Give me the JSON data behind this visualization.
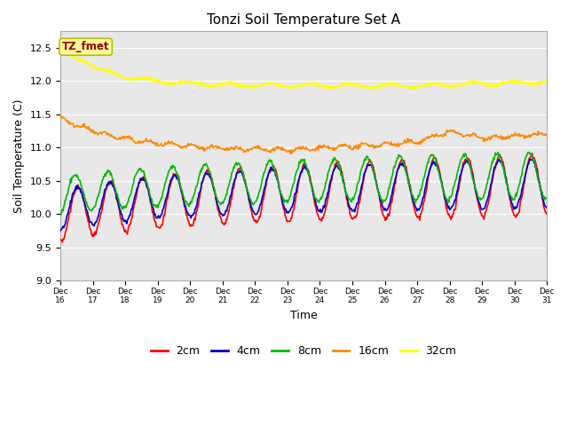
{
  "title": "Tonzi Soil Temperature Set A",
  "xlabel": "Time",
  "ylabel": "Soil Temperature (C)",
  "ylim": [
    9.0,
    12.75
  ],
  "yticks": [
    9.0,
    9.5,
    10.0,
    10.5,
    11.0,
    11.5,
    12.0,
    12.5
  ],
  "background_color": "#ffffff",
  "plot_bg_color": "#e8e8e8",
  "annotation_text": "TZ_fmet",
  "annotation_bg": "#ffff99",
  "annotation_border": "#bbbb00",
  "annotation_text_color": "#990000",
  "legend_entries": [
    "2cm",
    "4cm",
    "8cm",
    "16cm",
    "32cm"
  ],
  "line_colors": [
    "#ff0000",
    "#0000cc",
    "#00bb00",
    "#ff8800",
    "#ffff00"
  ],
  "line_widths": [
    1.2,
    1.2,
    1.2,
    1.2,
    1.5
  ],
  "n_points": 720,
  "x_start": 16,
  "x_end": 31,
  "xtick_positions": [
    16,
    17,
    18,
    19,
    20,
    21,
    22,
    23,
    24,
    25,
    26,
    27,
    28,
    29,
    30,
    31
  ],
  "xtick_labels": [
    "Dec 16",
    "Dec 17",
    "Dec 18",
    "Dec 19",
    "Dec 20",
    "Dec 21",
    "Dec 22",
    "Dec 23",
    "Dec 24",
    "Dec 25",
    "Dec 26",
    "Dec 27",
    "Dec 28",
    "Dec 29",
    "Dec 30",
    "Dec 31"
  ]
}
